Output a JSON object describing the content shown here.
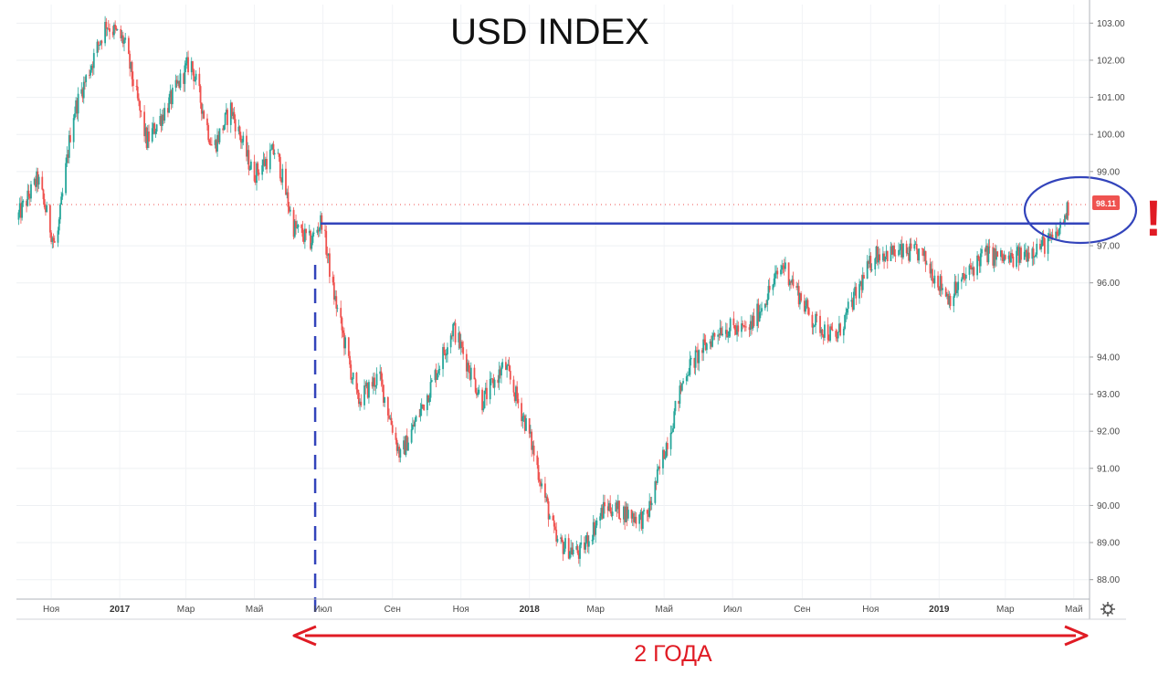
{
  "chart_data": {
    "type": "candlestick",
    "title": "USD INDEX",
    "price_badge": "98.11",
    "y_ticks": [
      "88.00",
      "89.00",
      "90.00",
      "91.00",
      "92.00",
      "93.00",
      "94.00",
      "96.00",
      "97.00",
      "99.00",
      "100.00",
      "101.00",
      "102.00",
      "103.00"
    ],
    "ylim": [
      87.5,
      103.5
    ],
    "x_ticks": [
      {
        "label": "Ноя",
        "bold": false
      },
      {
        "label": "2017",
        "bold": true
      },
      {
        "label": "Мар",
        "bold": false
      },
      {
        "label": "Май",
        "bold": false
      },
      {
        "label": "Июл",
        "bold": false
      },
      {
        "label": "Сен",
        "bold": false
      },
      {
        "label": "Ноя",
        "bold": false
      },
      {
        "label": "2018",
        "bold": true
      },
      {
        "label": "Мар",
        "bold": false
      },
      {
        "label": "Май",
        "bold": false
      },
      {
        "label": "Июл",
        "bold": false
      },
      {
        "label": "Сен",
        "bold": false
      },
      {
        "label": "Ноя",
        "bold": false
      },
      {
        "label": "2019",
        "bold": true
      },
      {
        "label": "Мар",
        "bold": false
      },
      {
        "label": "Май",
        "bold": false
      }
    ],
    "x_range": [
      "2016-10-01",
      "2019-05-15"
    ],
    "price_path": [
      [
        "2016-10-01",
        97.7
      ],
      [
        "2016-10-20",
        98.8
      ],
      [
        "2016-11-05",
        96.9
      ],
      [
        "2016-11-20",
        100.5
      ],
      [
        "2016-12-20",
        103.0
      ],
      [
        "2017-01-05",
        102.5
      ],
      [
        "2017-01-25",
        99.8
      ],
      [
        "2017-02-15",
        100.9
      ],
      [
        "2017-03-05",
        102.0
      ],
      [
        "2017-03-25",
        99.6
      ],
      [
        "2017-04-10",
        100.7
      ],
      [
        "2017-04-30",
        98.9
      ],
      [
        "2017-05-20",
        99.6
      ],
      [
        "2017-06-05",
        97.5
      ],
      [
        "2017-06-20",
        97.1
      ],
      [
        "2017-06-30",
        97.7
      ],
      [
        "2017-07-10",
        95.8
      ],
      [
        "2017-08-01",
        92.8
      ],
      [
        "2017-08-20",
        93.5
      ],
      [
        "2017-09-08",
        91.3
      ],
      [
        "2017-10-05",
        93.2
      ],
      [
        "2017-10-25",
        94.8
      ],
      [
        "2017-11-20",
        92.8
      ],
      [
        "2017-12-10",
        93.8
      ],
      [
        "2017-12-31",
        92.0
      ],
      [
        "2018-01-25",
        89.0
      ],
      [
        "2018-02-15",
        88.7
      ],
      [
        "2018-03-10",
        90.0
      ],
      [
        "2018-04-15",
        89.6
      ],
      [
        "2018-05-20",
        93.6
      ],
      [
        "2018-06-20",
        94.8
      ],
      [
        "2018-07-15",
        94.7
      ],
      [
        "2018-08-15",
        96.5
      ],
      [
        "2018-09-10",
        95.0
      ],
      [
        "2018-10-01",
        94.5
      ],
      [
        "2018-11-05",
        96.8
      ],
      [
        "2018-12-15",
        96.8
      ],
      [
        "2019-01-10",
        95.6
      ],
      [
        "2019-02-10",
        96.8
      ],
      [
        "2019-03-05",
        96.6
      ],
      [
        "2019-03-25",
        96.9
      ],
      [
        "2019-04-15",
        97.2
      ],
      [
        "2019-04-27",
        98.1
      ]
    ],
    "up_color": "#26a69a",
    "down_color": "#ef5350",
    "annotations": {
      "resistance_level": 97.6,
      "resistance_start": "2017-06-29",
      "vertical_marker_date": "2017-06-29",
      "span_label": "2 ГОДА",
      "exclamation": "!",
      "line_color": "#3344bb",
      "arrow_color": "#e01b24"
    },
    "grid": true
  }
}
